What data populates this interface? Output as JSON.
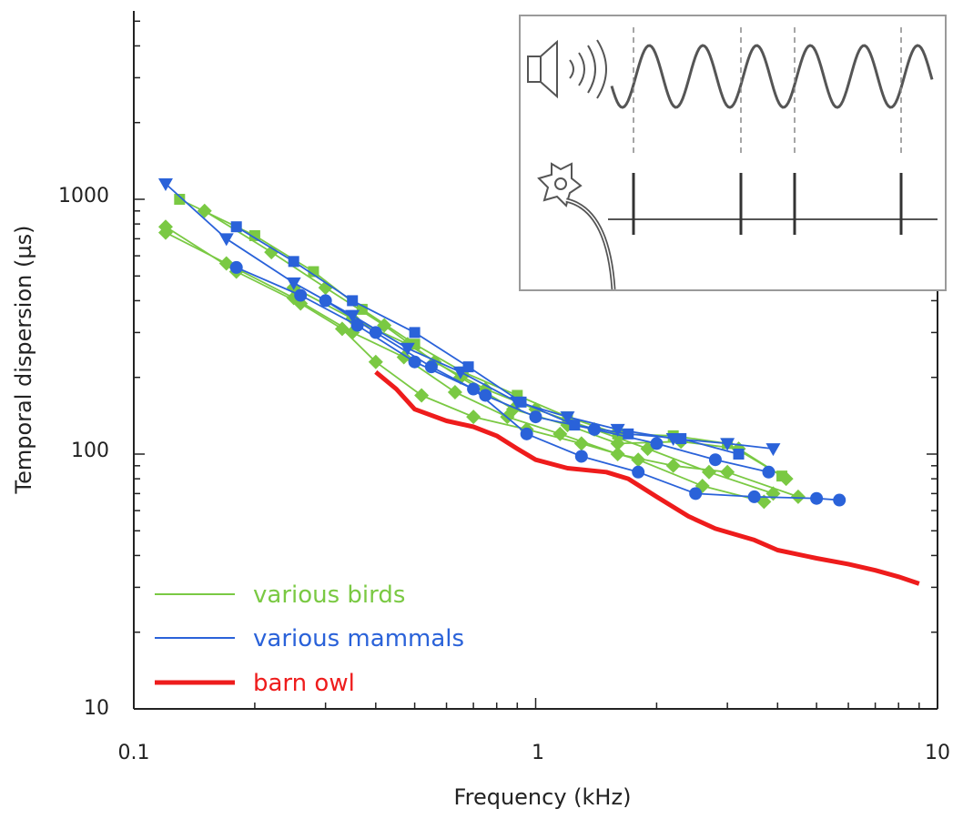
{
  "chart_data": {
    "type": "line",
    "title": "",
    "xlabel": "Frequency (kHz)",
    "ylabel": "Temporal dispersion (µs)",
    "xscale": "log",
    "yscale": "log",
    "xlim": [
      0.1,
      10
    ],
    "ylim": [
      10,
      5000
    ],
    "x_tick_labels": [
      "0.1",
      "1",
      "10"
    ],
    "y_tick_labels": [
      "10",
      "100",
      "1000"
    ],
    "grid": false,
    "legend_position": "bottom-left",
    "colors": {
      "birds": "#7ac943",
      "mammals": "#2a62d9",
      "owl": "#ee1c1c",
      "axis": "#222222",
      "inset": "#555555"
    },
    "legend": [
      {
        "label": "various birds",
        "color": "#7ac943"
      },
      {
        "label": "various mammals",
        "color": "#2a62d9"
      },
      {
        "label": "barn owl",
        "color": "#ee1c1c"
      }
    ],
    "series": [
      {
        "group": "birds",
        "marker": "diamond",
        "x": [
          0.12,
          0.18,
          0.26,
          0.33,
          0.4,
          0.52,
          0.7,
          0.95,
          1.3,
          1.8,
          2.6,
          3.7
        ],
        "y": [
          780,
          520,
          390,
          310,
          230,
          170,
          140,
          125,
          110,
          95,
          75,
          65
        ]
      },
      {
        "group": "birds",
        "marker": "square",
        "x": [
          0.13,
          0.2,
          0.28,
          0.37,
          0.5,
          0.66,
          0.9,
          1.2,
          1.6,
          2.2,
          3.0,
          4.1
        ],
        "y": [
          1000,
          720,
          520,
          370,
          270,
          210,
          170,
          140,
          120,
          118,
          110,
          82
        ]
      },
      {
        "group": "birds",
        "marker": "diamond",
        "x": [
          0.15,
          0.22,
          0.3,
          0.42,
          0.56,
          0.75,
          1.0,
          1.4,
          1.9,
          2.7,
          3.9
        ],
        "y": [
          900,
          620,
          450,
          320,
          230,
          180,
          150,
          125,
          105,
          85,
          70
        ]
      },
      {
        "group": "birds",
        "marker": "diamond",
        "x": [
          0.12,
          0.17,
          0.25,
          0.35,
          0.47,
          0.63,
          0.85,
          1.15,
          1.6,
          2.2,
          3.0,
          4.5
        ],
        "y": [
          740,
          560,
          410,
          300,
          240,
          175,
          140,
          120,
          100,
          90,
          85,
          68
        ]
      },
      {
        "group": "birds",
        "marker": "diamond",
        "x": [
          0.25,
          0.35,
          0.48,
          0.65,
          0.88,
          1.2,
          1.6,
          2.3,
          3.2,
          4.2
        ],
        "y": [
          450,
          340,
          270,
          200,
          150,
          130,
          110,
          112,
          105,
          80
        ]
      },
      {
        "group": "mammals",
        "marker": "triangle-down",
        "x": [
          0.12,
          0.17,
          0.25,
          0.35,
          0.48,
          0.65,
          0.9,
          1.2,
          1.6,
          2.2,
          3.0,
          3.9
        ],
        "y": [
          1150,
          700,
          470,
          350,
          260,
          210,
          160,
          140,
          125,
          115,
          110,
          105
        ]
      },
      {
        "group": "mammals",
        "marker": "square",
        "x": [
          0.18,
          0.25,
          0.35,
          0.5,
          0.68,
          0.92,
          1.25,
          1.7,
          2.3,
          3.2
        ],
        "y": [
          780,
          570,
          400,
          300,
          220,
          160,
          130,
          120,
          115,
          100
        ]
      },
      {
        "group": "mammals",
        "marker": "circle",
        "x": [
          0.18,
          0.26,
          0.36,
          0.5,
          0.7,
          0.95,
          1.3,
          1.8,
          2.5,
          3.5,
          5.0,
          5.7
        ],
        "y": [
          540,
          420,
          320,
          230,
          180,
          120,
          98,
          85,
          70,
          68,
          67,
          66
        ]
      },
      {
        "group": "mammals",
        "marker": "circle",
        "x": [
          0.3,
          0.4,
          0.55,
          0.75,
          1.0,
          1.4,
          2.0,
          2.8,
          3.8
        ],
        "y": [
          400,
          300,
          220,
          170,
          140,
          125,
          110,
          95,
          85
        ]
      },
      {
        "group": "owl",
        "marker": "none",
        "x": [
          0.4,
          0.45,
          0.5,
          0.6,
          0.7,
          0.8,
          0.9,
          1.0,
          1.2,
          1.5,
          1.7,
          2.0,
          2.4,
          2.8,
          3.5,
          4.0,
          5.0,
          6.0,
          7.0,
          8.0,
          9.0
        ],
        "y": [
          210,
          180,
          150,
          135,
          128,
          118,
          105,
          95,
          88,
          85,
          80,
          68,
          57,
          51,
          46,
          42,
          39,
          37,
          35,
          33,
          31
        ]
      }
    ]
  }
}
